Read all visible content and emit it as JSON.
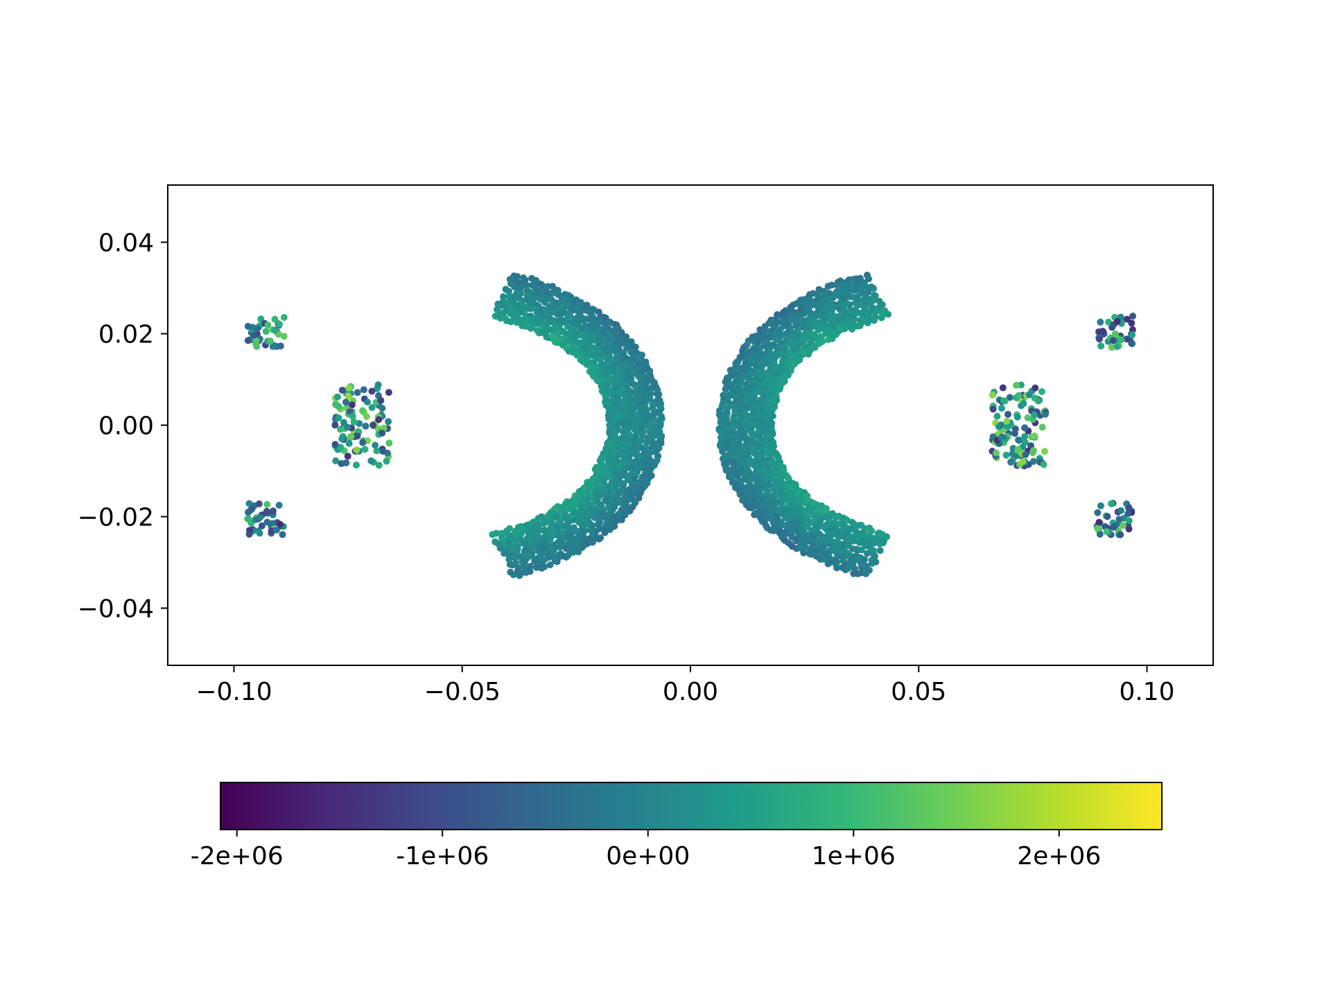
{
  "chart_data": {
    "type": "scatter",
    "title": "",
    "xlabel": "",
    "ylabel": "",
    "xlim": [
      -0.1145,
      0.1145
    ],
    "ylim": [
      -0.0525,
      0.0525
    ],
    "grid": false,
    "x_ticks": [
      -0.1,
      -0.05,
      0.0,
      0.05,
      0.1
    ],
    "x_tick_labels": [
      "−0.10",
      "−0.05",
      "0.00",
      "0.05",
      "0.10"
    ],
    "y_ticks": [
      0.04,
      0.02,
      0.0,
      -0.02,
      -0.04
    ],
    "y_tick_labels": [
      "0.04",
      "0.02",
      "0.00",
      "−0.02",
      "−0.04"
    ],
    "description_series": [
      {
        "name": "left-arc",
        "side": "left"
      },
      {
        "name": "right-arc",
        "side": "right"
      },
      {
        "name": "left-inner-cluster",
        "center": [
          -0.072,
          0.0
        ]
      },
      {
        "name": "right-inner-cluster",
        "center": [
          0.072,
          0.0
        ]
      }
    ],
    "shape": {
      "arc_tip_x": 0.099,
      "arc_tip_y": 0.021,
      "arc_outer_top_y": 0.037,
      "arc_inner_top_y": 0.027,
      "arc_outer_nose_x": 0.0065,
      "arc_inner_nose_x": 0.0175,
      "cluster_half_width": 0.006,
      "cluster_half_height": 0.009
    },
    "colorbar": {
      "colormap": "viridis",
      "orientation": "horizontal",
      "vmin": -2080000,
      "vmax": 2500000,
      "ticks": [
        -2000000,
        -1000000,
        0,
        1000000,
        2000000
      ],
      "tick_labels": [
        "-2e+06",
        "-1e+06",
        "0e+00",
        "1e+06",
        "2e+06"
      ]
    },
    "colors": {
      "viridis_stops": [
        "#440154",
        "#482878",
        "#3e4a89",
        "#31688e",
        "#26828e",
        "#1f9e89",
        "#35b779",
        "#6ece58",
        "#b5de2b",
        "#fde725"
      ]
    }
  }
}
